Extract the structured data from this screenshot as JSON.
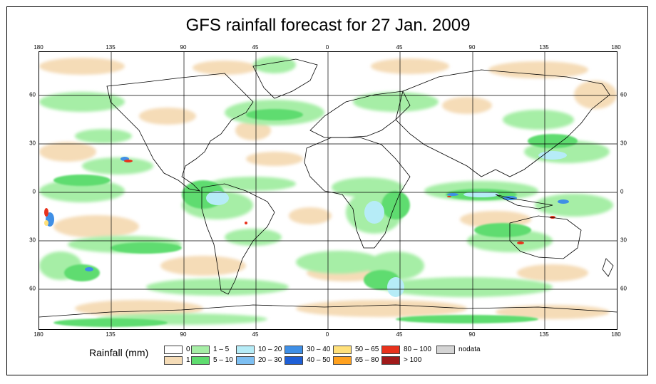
{
  "title": "GFS rainfall forecast for 27 Jan. 2009",
  "axes": {
    "top_lon_ticks": [
      "180",
      "135",
      "90",
      "45",
      "0",
      "45",
      "90",
      "135",
      "180"
    ],
    "bottom_lon_ticks": [
      "180",
      "135",
      "90",
      "45",
      "0",
      "45",
      "90",
      "135",
      "180"
    ],
    "left_lat_ticks": [
      "60",
      "30",
      "0",
      "30",
      "60"
    ],
    "right_lat_ticks": [
      "60",
      "30",
      "0",
      "30",
      "60"
    ]
  },
  "legend": {
    "label": "Rainfall (mm)",
    "items": [
      {
        "label": "0",
        "color": "#ffffff"
      },
      {
        "label": "1",
        "color": "#f5dcb7"
      },
      {
        "label": "1 – 5",
        "color": "#a6eea6"
      },
      {
        "label": "5 – 10",
        "color": "#5fdc6f"
      },
      {
        "label": "10 – 20",
        "color": "#b6ecf7"
      },
      {
        "label": "20 – 30",
        "color": "#7dbff2"
      },
      {
        "label": "30 – 40",
        "color": "#3f8fe6"
      },
      {
        "label": "40 – 50",
        "color": "#1e5fd6"
      },
      {
        "label": "50 – 65",
        "color": "#ffe07a"
      },
      {
        "label": "65 – 80",
        "color": "#ffa11e"
      },
      {
        "label": "80 – 100",
        "color": "#e8321c"
      },
      {
        "label": "> 100",
        "color": "#a01a1a"
      },
      {
        "label": "nodata",
        "color": "#d4d4d4"
      }
    ]
  }
}
